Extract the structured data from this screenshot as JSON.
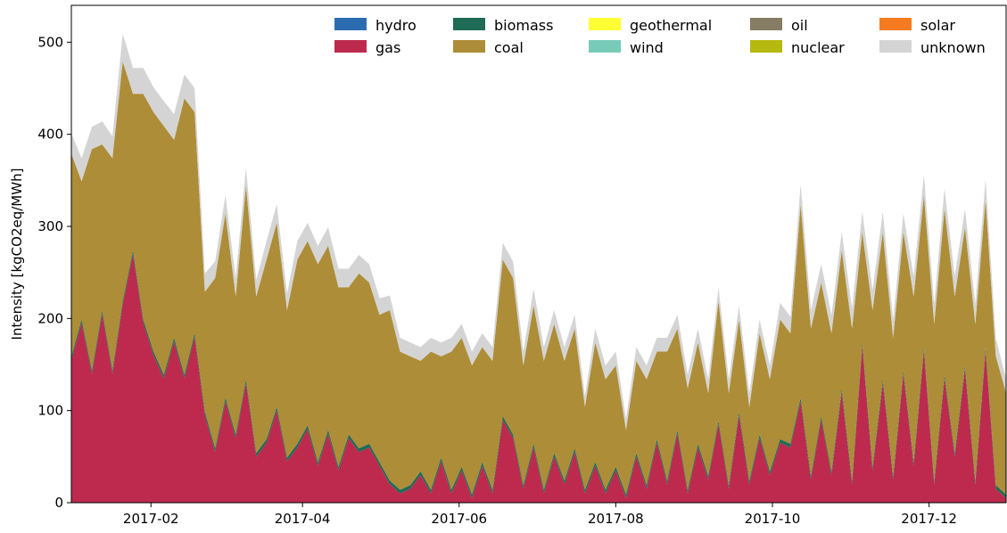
{
  "chart_data": {
    "type": "area",
    "stacked": true,
    "title": "",
    "xlabel": "",
    "ylabel": "Intensity [kgCO2eq/MWh]",
    "xlim": [
      "2017-01-01",
      "2017-12-31"
    ],
    "ylim": [
      0,
      540
    ],
    "yticks": [
      0,
      100,
      200,
      300,
      400,
      500
    ],
    "xticks": [
      {
        "date": "2017-02-01",
        "label": "2017-02"
      },
      {
        "date": "2017-04-01",
        "label": "2017-04"
      },
      {
        "date": "2017-06-01",
        "label": "2017-06"
      },
      {
        "date": "2017-08-01",
        "label": "2017-08"
      },
      {
        "date": "2017-10-01",
        "label": "2017-10"
      },
      {
        "date": "2017-12-01",
        "label": "2017-12"
      }
    ],
    "grid": false,
    "legend_position": "top-right",
    "legend": [
      {
        "name": "hydro",
        "color": "#2b6cb0"
      },
      {
        "name": "gas",
        "color": "#bd2a4d"
      },
      {
        "name": "biomass",
        "color": "#1f6b55"
      },
      {
        "name": "coal",
        "color": "#ad8d37"
      },
      {
        "name": "geothermal",
        "color": "#ffff33"
      },
      {
        "name": "wind",
        "color": "#78cbb8"
      },
      {
        "name": "oil",
        "color": "#877c64"
      },
      {
        "name": "nuclear",
        "color": "#b5b80f"
      },
      {
        "name": "solar",
        "color": "#f47b1f"
      },
      {
        "name": "unknown",
        "color": "#d4d4d4"
      }
    ],
    "x": [
      "2017-01-01",
      "2017-01-05",
      "2017-01-09",
      "2017-01-13",
      "2017-01-17",
      "2017-01-21",
      "2017-01-25",
      "2017-01-29",
      "2017-02-02",
      "2017-02-06",
      "2017-02-10",
      "2017-02-14",
      "2017-02-18",
      "2017-02-22",
      "2017-02-26",
      "2017-03-02",
      "2017-03-06",
      "2017-03-10",
      "2017-03-14",
      "2017-03-18",
      "2017-03-22",
      "2017-03-26",
      "2017-03-30",
      "2017-04-03",
      "2017-04-07",
      "2017-04-11",
      "2017-04-15",
      "2017-04-19",
      "2017-04-23",
      "2017-04-27",
      "2017-05-01",
      "2017-05-05",
      "2017-05-09",
      "2017-05-13",
      "2017-05-17",
      "2017-05-21",
      "2017-05-25",
      "2017-05-29",
      "2017-06-02",
      "2017-06-06",
      "2017-06-10",
      "2017-06-14",
      "2017-06-18",
      "2017-06-22",
      "2017-06-26",
      "2017-06-30",
      "2017-07-04",
      "2017-07-08",
      "2017-07-12",
      "2017-07-16",
      "2017-07-20",
      "2017-07-24",
      "2017-07-28",
      "2017-08-01",
      "2017-08-05",
      "2017-08-09",
      "2017-08-13",
      "2017-08-17",
      "2017-08-21",
      "2017-08-25",
      "2017-08-29",
      "2017-09-02",
      "2017-09-06",
      "2017-09-10",
      "2017-09-14",
      "2017-09-18",
      "2017-09-22",
      "2017-09-26",
      "2017-09-30",
      "2017-10-04",
      "2017-10-08",
      "2017-10-12",
      "2017-10-16",
      "2017-10-20",
      "2017-10-24",
      "2017-10-28",
      "2017-11-01",
      "2017-11-05",
      "2017-11-09",
      "2017-11-13",
      "2017-11-17",
      "2017-11-21",
      "2017-11-25",
      "2017-11-29",
      "2017-12-03",
      "2017-12-07",
      "2017-12-11",
      "2017-12-15",
      "2017-12-19",
      "2017-12-23",
      "2017-12-27",
      "2017-12-31"
    ],
    "series": [
      {
        "name": "hydro",
        "color": "#2b6cb0",
        "values": [
          0,
          0,
          0,
          0,
          0,
          0,
          0,
          0,
          0,
          0,
          0,
          0,
          0,
          0,
          0,
          0,
          0,
          0,
          0,
          0,
          0,
          0,
          0,
          0,
          0,
          0,
          0,
          0,
          0,
          0,
          0,
          0,
          0,
          0,
          0,
          0,
          0,
          0,
          0,
          0,
          0,
          0,
          0,
          0,
          0,
          0,
          0,
          0,
          0,
          0,
          0,
          0,
          0,
          0,
          0,
          0,
          0,
          0,
          0,
          0,
          0,
          0,
          0,
          0,
          0,
          0,
          0,
          0,
          0,
          0,
          0,
          0,
          0,
          0,
          0,
          0,
          0,
          0,
          0,
          0,
          0,
          0,
          0,
          0,
          0,
          0,
          0,
          0,
          0,
          0,
          0,
          0
        ]
      },
      {
        "name": "gas",
        "color": "#bd2a4d",
        "values": [
          155,
          195,
          140,
          205,
          140,
          215,
          270,
          195,
          160,
          135,
          175,
          135,
          180,
          95,
          55,
          110,
          70,
          130,
          50,
          65,
          100,
          45,
          60,
          80,
          40,
          75,
          35,
          70,
          55,
          60,
          40,
          20,
          10,
          15,
          30,
          10,
          45,
          10,
          35,
          5,
          40,
          10,
          90,
          70,
          15,
          60,
          10,
          50,
          20,
          55,
          10,
          40,
          10,
          35,
          5,
          50,
          15,
          65,
          20,
          75,
          10,
          60,
          25,
          85,
          15,
          95,
          20,
          70,
          30,
          65,
          60,
          110,
          25,
          90,
          30,
          120,
          20,
          170,
          35,
          130,
          25,
          140,
          40,
          165,
          20,
          135,
          50,
          145,
          20,
          165,
          15,
          5
        ]
      },
      {
        "name": "biomass",
        "color": "#1f6b55",
        "values": [
          4,
          4,
          4,
          4,
          4,
          4,
          4,
          4,
          4,
          4,
          4,
          4,
          4,
          4,
          4,
          4,
          4,
          4,
          4,
          4,
          4,
          4,
          4,
          4,
          4,
          4,
          4,
          4,
          4,
          4,
          4,
          4,
          4,
          4,
          4,
          4,
          4,
          4,
          4,
          4,
          4,
          4,
          4,
          4,
          4,
          4,
          4,
          4,
          4,
          4,
          4,
          4,
          4,
          4,
          4,
          4,
          4,
          4,
          4,
          4,
          4,
          4,
          4,
          4,
          4,
          4,
          4,
          4,
          4,
          4,
          4,
          4,
          4,
          4,
          4,
          4,
          4,
          4,
          4,
          4,
          4,
          4,
          4,
          4,
          4,
          4,
          4,
          4,
          4,
          4,
          4,
          4
        ]
      },
      {
        "name": "coal",
        "color": "#ad8d37",
        "values": [
          220,
          150,
          240,
          180,
          230,
          260,
          170,
          245,
          260,
          270,
          215,
          300,
          240,
          130,
          185,
          200,
          150,
          210,
          170,
          195,
          200,
          160,
          200,
          200,
          215,
          200,
          195,
          160,
          190,
          175,
          160,
          185,
          150,
          140,
          120,
          150,
          110,
          150,
          140,
          140,
          125,
          140,
          170,
          170,
          130,
          150,
          140,
          140,
          130,
          130,
          90,
          130,
          120,
          110,
          70,
          100,
          115,
          95,
          140,
          110,
          110,
          110,
          90,
          130,
          100,
          100,
          80,
          110,
          100,
          130,
          120,
          210,
          160,
          145,
          150,
          150,
          165,
          120,
          170,
          160,
          150,
          150,
          180,
          165,
          170,
          180,
          170,
          150,
          170,
          160,
          140,
          110
        ]
      },
      {
        "name": "geothermal",
        "color": "#ffff33",
        "values": [
          0,
          0,
          0,
          0,
          0,
          0,
          0,
          0,
          0,
          0,
          0,
          0,
          0,
          0,
          0,
          0,
          0,
          0,
          0,
          0,
          0,
          0,
          0,
          0,
          0,
          0,
          0,
          0,
          0,
          0,
          0,
          0,
          0,
          0,
          0,
          0,
          0,
          0,
          0,
          0,
          0,
          0,
          0,
          0,
          0,
          0,
          0,
          0,
          0,
          0,
          0,
          0,
          0,
          0,
          0,
          0,
          0,
          0,
          0,
          0,
          0,
          0,
          0,
          0,
          0,
          0,
          0,
          0,
          0,
          0,
          0,
          0,
          0,
          0,
          0,
          0,
          0,
          0,
          0,
          0,
          0,
          0,
          0,
          0,
          0,
          0,
          0,
          0,
          0,
          0,
          0,
          0
        ]
      },
      {
        "name": "wind",
        "color": "#78cbb8",
        "values": [
          0,
          0,
          0,
          0,
          0,
          0,
          0,
          0,
          0,
          0,
          0,
          0,
          0,
          0,
          0,
          0,
          0,
          0,
          0,
          0,
          0,
          0,
          0,
          0,
          0,
          0,
          0,
          0,
          0,
          0,
          0,
          0,
          0,
          0,
          0,
          0,
          0,
          0,
          0,
          0,
          0,
          0,
          0,
          0,
          0,
          0,
          0,
          0,
          0,
          0,
          0,
          0,
          0,
          0,
          0,
          0,
          0,
          0,
          0,
          0,
          0,
          0,
          0,
          0,
          0,
          0,
          0,
          0,
          0,
          0,
          0,
          0,
          0,
          0,
          0,
          0,
          0,
          0,
          0,
          0,
          0,
          0,
          0,
          0,
          0,
          0,
          0,
          0,
          0,
          0,
          0,
          0
        ]
      },
      {
        "name": "oil",
        "color": "#877c64",
        "values": [
          0,
          0,
          0,
          0,
          0,
          0,
          0,
          0,
          0,
          0,
          0,
          0,
          0,
          0,
          0,
          0,
          0,
          0,
          0,
          0,
          0,
          0,
          0,
          0,
          0,
          0,
          0,
          0,
          0,
          0,
          0,
          0,
          0,
          0,
          0,
          0,
          0,
          0,
          0,
          0,
          0,
          0,
          0,
          0,
          0,
          0,
          0,
          0,
          0,
          0,
          0,
          0,
          0,
          0,
          0,
          0,
          0,
          0,
          0,
          0,
          0,
          0,
          0,
          0,
          0,
          0,
          0,
          0,
          0,
          0,
          0,
          0,
          0,
          0,
          0,
          0,
          0,
          0,
          0,
          0,
          0,
          0,
          0,
          0,
          0,
          0,
          0,
          0,
          0,
          0,
          0,
          0
        ]
      },
      {
        "name": "nuclear",
        "color": "#b5b80f",
        "values": [
          0,
          0,
          0,
          0,
          0,
          0,
          0,
          0,
          0,
          0,
          0,
          0,
          0,
          0,
          0,
          0,
          0,
          0,
          0,
          0,
          0,
          0,
          0,
          0,
          0,
          0,
          0,
          0,
          0,
          0,
          0,
          0,
          0,
          0,
          0,
          0,
          0,
          0,
          0,
          0,
          0,
          0,
          0,
          0,
          0,
          0,
          0,
          0,
          0,
          0,
          0,
          0,
          0,
          0,
          0,
          0,
          0,
          0,
          0,
          0,
          0,
          0,
          0,
          0,
          0,
          0,
          0,
          0,
          0,
          0,
          0,
          0,
          0,
          0,
          0,
          0,
          0,
          0,
          0,
          0,
          0,
          0,
          0,
          0,
          0,
          0,
          0,
          0,
          0,
          0,
          0,
          0
        ]
      },
      {
        "name": "solar",
        "color": "#f47b1f",
        "values": [
          0,
          0,
          0,
          0,
          0,
          0,
          0,
          0,
          0,
          0,
          0,
          0,
          0,
          0,
          0,
          0,
          0,
          0,
          0,
          0,
          0,
          0,
          0,
          0,
          0,
          0,
          0,
          0,
          0,
          0,
          0,
          0,
          0,
          0,
          0,
          0,
          0,
          0,
          0,
          0,
          0,
          0,
          0,
          0,
          0,
          0,
          0,
          0,
          0,
          0,
          0,
          0,
          0,
          0,
          0,
          0,
          0,
          0,
          0,
          0,
          0,
          0,
          0,
          0,
          0,
          0,
          0,
          0,
          0,
          0,
          0,
          0,
          0,
          0,
          0,
          0,
          0,
          0,
          0,
          0,
          0,
          0,
          0,
          0,
          0,
          0,
          0,
          0,
          0,
          0,
          0,
          0
        ]
      },
      {
        "name": "unknown",
        "color": "#d4d4d4",
        "values": [
          22,
          25,
          24,
          25,
          24,
          30,
          28,
          28,
          27,
          27,
          28,
          26,
          26,
          20,
          18,
          20,
          20,
          20,
          18,
          20,
          20,
          18,
          20,
          20,
          20,
          20,
          20,
          20,
          20,
          20,
          18,
          16,
          15,
          15,
          15,
          15,
          15,
          15,
          15,
          15,
          15,
          15,
          18,
          18,
          15,
          18,
          15,
          15,
          15,
          15,
          12,
          15,
          15,
          15,
          12,
          15,
          15,
          15,
          15,
          15,
          15,
          15,
          15,
          15,
          15,
          15,
          15,
          15,
          15,
          18,
          18,
          22,
          20,
          20,
          20,
          20,
          22,
          22,
          22,
          22,
          20,
          20,
          22,
          22,
          22,
          22,
          22,
          20,
          22,
          22,
          20,
          15
        ]
      }
    ]
  }
}
